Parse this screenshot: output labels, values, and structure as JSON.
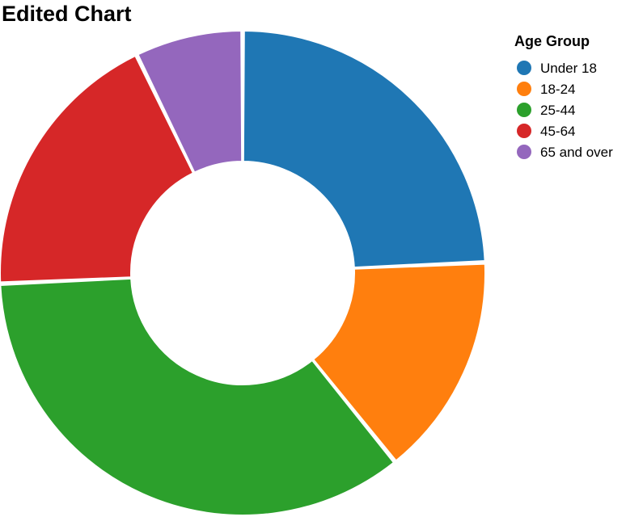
{
  "chart_data": {
    "type": "pie",
    "title": "Edited Chart",
    "legend_title": "Age Group",
    "legend_position": "top-right",
    "inner_radius_ratio": 0.46,
    "categories": [
      "Under 18",
      "18-24",
      "25-44",
      "45-64",
      "65 and over"
    ],
    "values": [
      24.3,
      14.9,
      35.1,
      18.5,
      7.2
    ],
    "colors": [
      "#1f77b4",
      "#ff7f0e",
      "#2ca02c",
      "#d62728",
      "#9467bd"
    ]
  }
}
